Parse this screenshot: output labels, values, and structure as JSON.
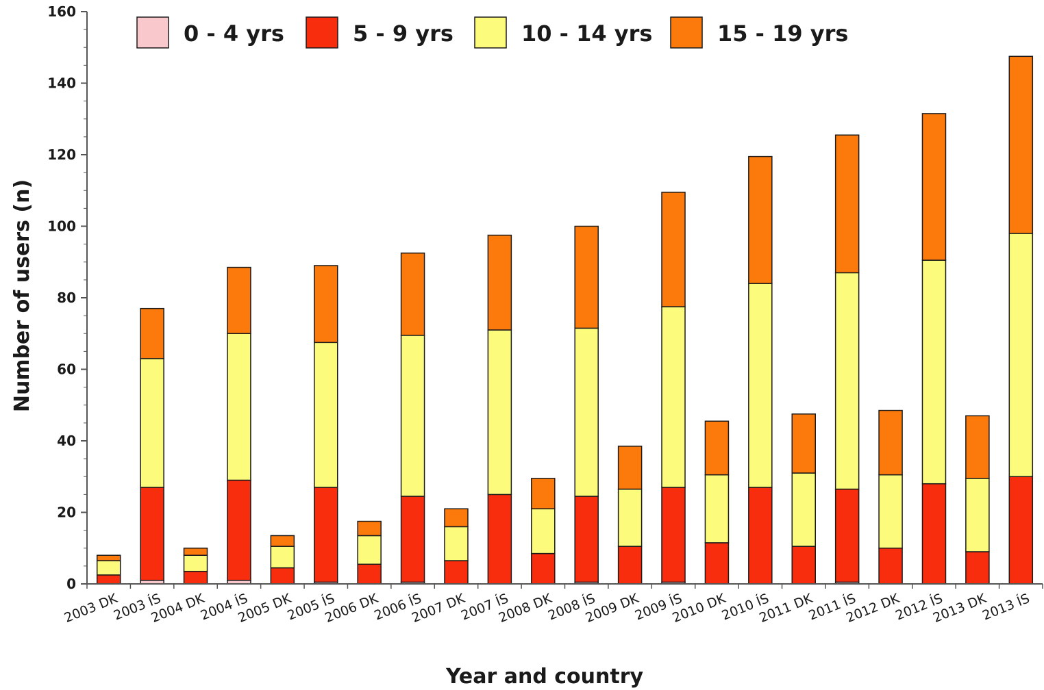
{
  "chart_data": {
    "type": "bar",
    "stacked": true,
    "xlabel": "Year and country",
    "ylabel": "Number of users (n)",
    "ylim": [
      0,
      160
    ],
    "yticks": [
      0,
      20,
      40,
      60,
      80,
      100,
      120,
      140,
      160
    ],
    "legend_position": "top",
    "grid": false,
    "categories": [
      "2003 DK",
      "2003 ÍS",
      "2004 DK",
      "2004 ÍS",
      "2005 DK",
      "2005 ÍS",
      "2006 DK",
      "2006 ÍS",
      "2007 DK",
      "2007 ÍS",
      "2008 DK",
      "2008 ÍS",
      "2009 DK",
      "2009 ÍS",
      "2010 DK",
      "2010 ÍS",
      "2011 DK",
      "2011 ÍS",
      "2012 DK",
      "2012 ÍS",
      "2013 DK",
      "2013 ÍS"
    ],
    "series": [
      {
        "name": "0 - 4 yrs",
        "color": "#f9c8cc",
        "values": [
          0,
          1,
          0,
          1,
          0,
          0.5,
          0,
          0.5,
          0,
          0,
          0,
          0.5,
          0,
          0.5,
          0,
          0,
          0,
          0.5,
          0,
          0,
          0,
          0
        ]
      },
      {
        "name": "5 - 9 yrs",
        "color": "#f72d0e",
        "values": [
          2.5,
          26,
          3.5,
          28,
          4.5,
          26.5,
          5.5,
          24,
          6.5,
          25,
          8.5,
          24,
          10.5,
          26.5,
          11.5,
          27,
          10.5,
          26,
          10,
          28,
          9,
          30
        ]
      },
      {
        "name": "10 - 14 yrs",
        "color": "#fcfb7c",
        "values": [
          4,
          36,
          4.5,
          41,
          6,
          40.5,
          8,
          45,
          9.5,
          46,
          12.5,
          47,
          16,
          50.5,
          19,
          57,
          20.5,
          60.5,
          20.5,
          62.5,
          20.5,
          68
        ]
      },
      {
        "name": "15 - 19 yrs",
        "color": "#fc7a0b",
        "values": [
          1.5,
          14,
          2,
          18.5,
          3,
          21.5,
          4,
          23,
          5,
          26.5,
          8.5,
          28.5,
          12,
          32,
          15,
          35.5,
          16.5,
          38.5,
          18,
          41,
          17.5,
          49.5
        ]
      }
    ]
  }
}
